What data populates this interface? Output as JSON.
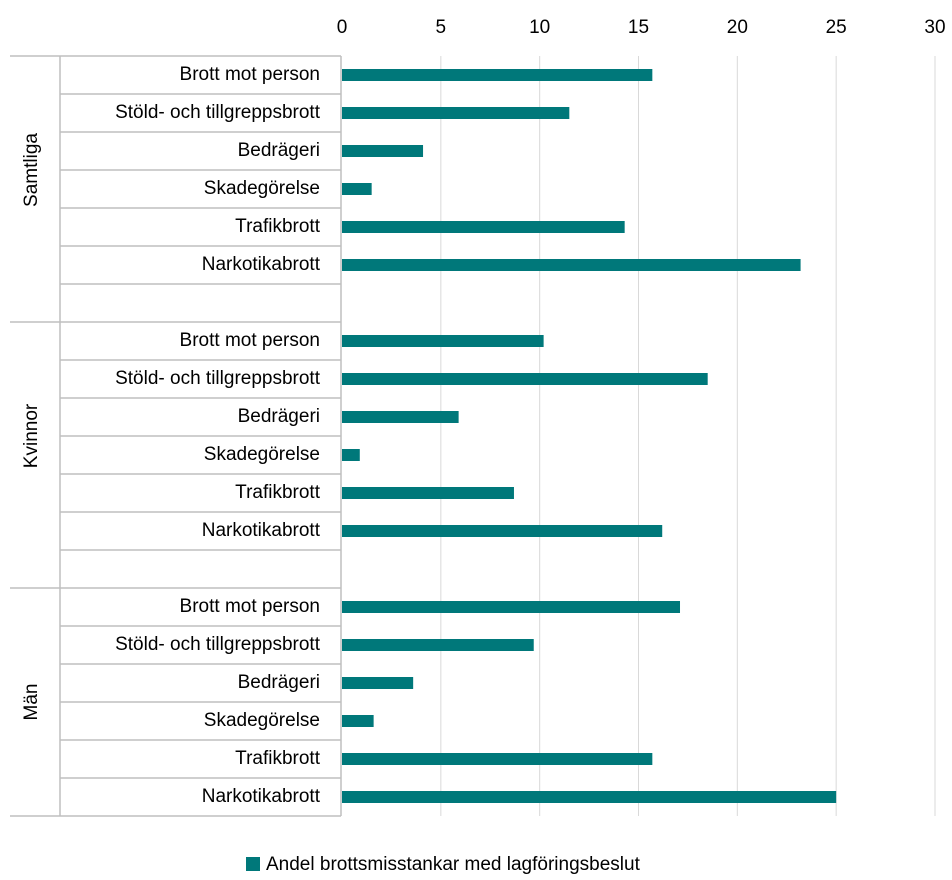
{
  "chart_data": {
    "type": "bar",
    "series_name": "Andel brottsmisstankar med lagföringsbeslut",
    "color": "#00787a",
    "groups": [
      {
        "name": "Samtliga",
        "categories": [
          "Brott mot person",
          "Stöld- och tillgreppsbrott",
          "Bedrägeri",
          "Skadegörelse",
          "Trafikbrott",
          "Narkotikabrott"
        ],
        "values": [
          15.7,
          11.5,
          4.1,
          1.5,
          14.3,
          23.2
        ]
      },
      {
        "name": "Kvinnor",
        "categories": [
          "Brott mot person",
          "Stöld- och tillgreppsbrott",
          "Bedrägeri",
          "Skadegörelse",
          "Trafikbrott",
          "Narkotikabrott"
        ],
        "values": [
          10.2,
          18.5,
          5.9,
          0.9,
          8.7,
          16.2
        ]
      },
      {
        "name": "Män",
        "categories": [
          "Brott mot person",
          "Stöld- och tillgreppsbrott",
          "Bedrägeri",
          "Skadegörelse",
          "Trafikbrott",
          "Narkotikabrott"
        ],
        "values": [
          17.1,
          9.7,
          3.6,
          1.6,
          15.7,
          25.0
        ]
      }
    ],
    "xlim": [
      0,
      30
    ],
    "xticks": [
      0,
      5,
      10,
      15,
      20,
      25,
      30
    ],
    "grid": true
  }
}
